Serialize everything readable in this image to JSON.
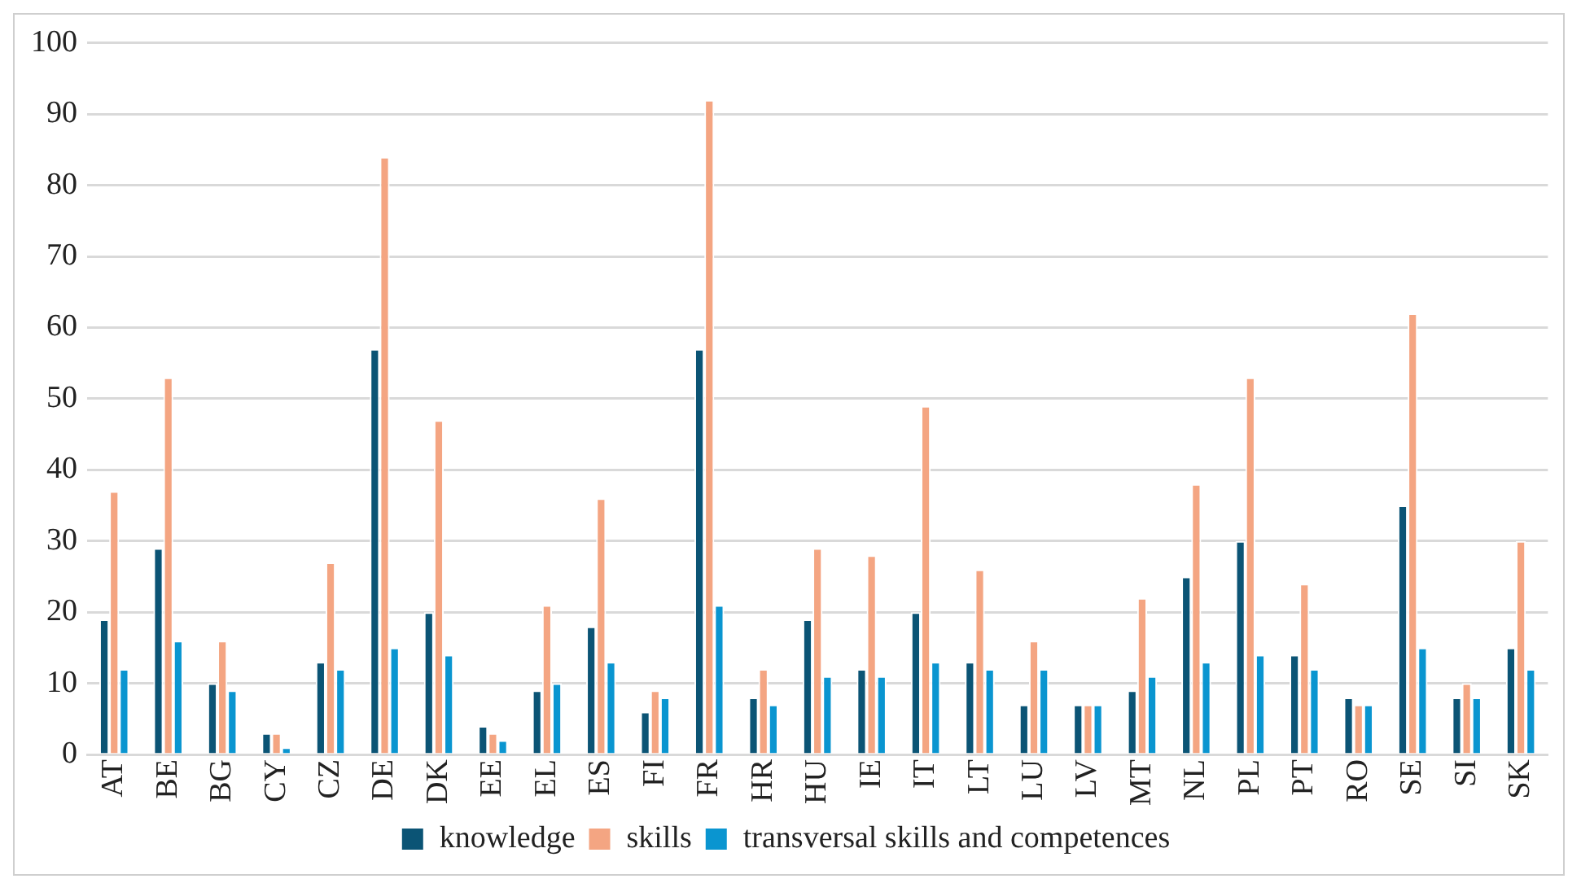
{
  "chart_data": {
    "type": "bar",
    "categories": [
      "AT",
      "BE",
      "BG",
      "CY",
      "CZ",
      "DE",
      "DK",
      "EE",
      "EL",
      "ES",
      "FI",
      "FR",
      "HR",
      "HU",
      "IE",
      "IT",
      "LT",
      "LU",
      "LV",
      "MT",
      "NL",
      "PL",
      "PT",
      "RO",
      "SE",
      "SI",
      "SK"
    ],
    "series": [
      {
        "name": "knowledge",
        "color": "#0b5475",
        "values": [
          19,
          29,
          10,
          3,
          13,
          57,
          20,
          4,
          9,
          18,
          6,
          57,
          8,
          19,
          12,
          20,
          13,
          7,
          7,
          9,
          25,
          30,
          14,
          8,
          35,
          8,
          15
        ]
      },
      {
        "name": "skills",
        "color": "#f4a582",
        "values": [
          37,
          53,
          16,
          3,
          27,
          84,
          47,
          3,
          21,
          36,
          9,
          92,
          12,
          29,
          28,
          49,
          26,
          16,
          7,
          22,
          38,
          53,
          24,
          7,
          62,
          10,
          30
        ]
      },
      {
        "name": "transversal skills and competences",
        "color": "#0a95d0",
        "values": [
          12,
          16,
          9,
          1,
          12,
          15,
          14,
          2,
          10,
          13,
          8,
          21,
          7,
          11,
          11,
          13,
          12,
          12,
          7,
          11,
          13,
          14,
          12,
          7,
          15,
          8,
          12
        ]
      }
    ],
    "ylim": [
      0,
      100
    ],
    "yticks": [
      0,
      10,
      20,
      30,
      40,
      50,
      60,
      70,
      80,
      90,
      100
    ],
    "grid": "y",
    "legend": "bottom"
  }
}
